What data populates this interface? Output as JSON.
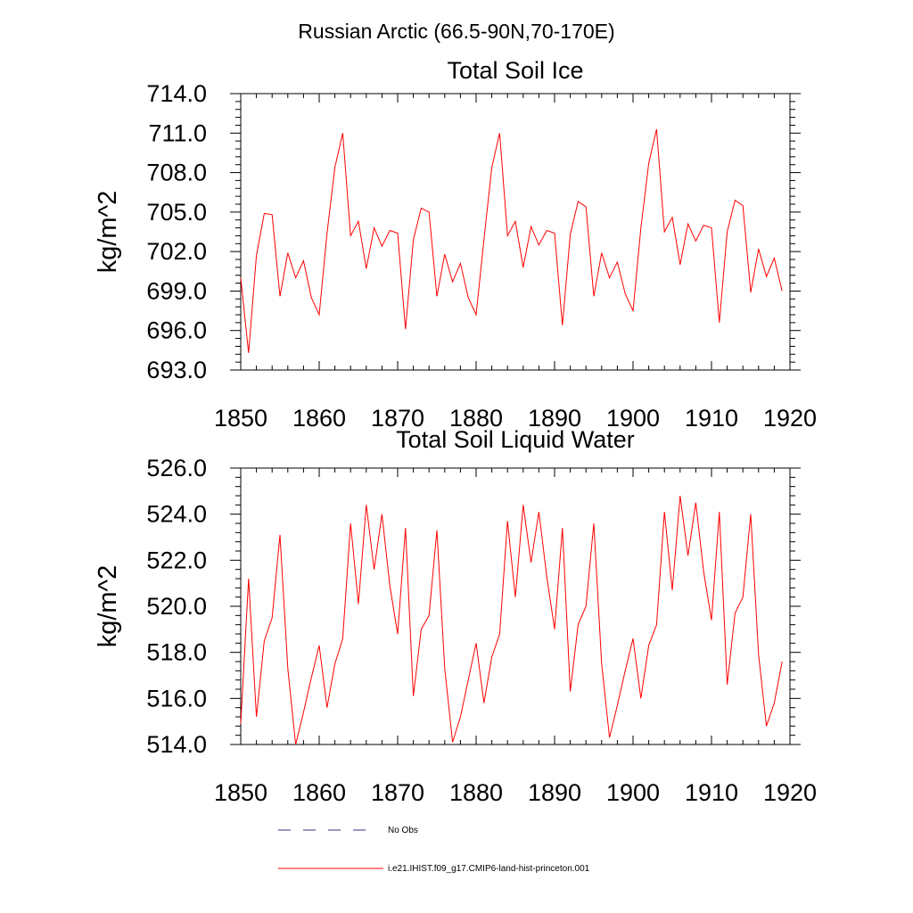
{
  "figure": {
    "title": "Russian Arctic (66.5-90N,70-170E)"
  },
  "chart_data": [
    {
      "type": "line",
      "title": "Total Soil Ice",
      "xlabel": "",
      "ylabel": "kg/m^2",
      "xlim": [
        1850,
        1920
      ],
      "ylim": [
        693,
        714
      ],
      "xticks": [
        "1850",
        "1860",
        "1870",
        "1880",
        "1890",
        "1900",
        "1910",
        "1920"
      ],
      "yticks": [
        "714.0",
        "711.0",
        "708.0",
        "705.0",
        "702.0",
        "699.0",
        "696.0",
        "693.0"
      ],
      "grid": false,
      "series": [
        {
          "name": "i.e21.IHIST.f09_g17.CMIP6-land-hist-princeton.001",
          "color": "#ff0000",
          "x": [
            1850,
            1851,
            1852,
            1853,
            1854,
            1855,
            1856,
            1857,
            1858,
            1859,
            1860,
            1861,
            1862,
            1863,
            1864,
            1865,
            1866,
            1867,
            1868,
            1869,
            1870,
            1871,
            1872,
            1873,
            1874,
            1875,
            1876,
            1877,
            1878,
            1879,
            1880,
            1881,
            1882,
            1883,
            1884,
            1885,
            1886,
            1887,
            1888,
            1889,
            1890,
            1891,
            1892,
            1893,
            1894,
            1895,
            1896,
            1897,
            1898,
            1899,
            1900,
            1901,
            1902,
            1903,
            1904,
            1905,
            1906,
            1907,
            1908,
            1909,
            1910,
            1911,
            1912,
            1913,
            1914,
            1915,
            1916,
            1917,
            1918,
            1919
          ],
          "y": [
            700.0,
            694.3,
            701.7,
            704.9,
            704.8,
            698.6,
            701.9,
            700.0,
            701.3,
            698.5,
            697.2,
            703.4,
            708.4,
            711.0,
            703.2,
            704.3,
            700.7,
            703.8,
            702.4,
            703.6,
            703.4,
            696.1,
            702.9,
            705.3,
            705.0,
            698.6,
            701.8,
            699.7,
            701.1,
            698.5,
            697.2,
            702.9,
            708.4,
            711.0,
            703.2,
            704.3,
            700.8,
            703.9,
            702.5,
            703.6,
            703.4,
            696.4,
            703.3,
            705.8,
            705.4,
            698.6,
            701.9,
            700.0,
            701.2,
            698.8,
            697.5,
            703.8,
            708.7,
            711.3,
            703.5,
            704.6,
            701.0,
            704.1,
            702.8,
            704.0,
            703.8,
            696.6,
            703.5,
            705.9,
            705.5,
            698.9,
            702.2,
            700.1,
            701.5,
            699.0
          ]
        }
      ]
    },
    {
      "type": "line",
      "title": "Total Soil Liquid Water",
      "xlabel": "",
      "ylabel": "kg/m^2",
      "xlim": [
        1850,
        1920
      ],
      "ylim": [
        514,
        526
      ],
      "xticks": [
        "1850",
        "1860",
        "1870",
        "1880",
        "1890",
        "1900",
        "1910",
        "1920"
      ],
      "yticks": [
        "526.0",
        "524.0",
        "522.0",
        "520.0",
        "518.0",
        "516.0",
        "514.0"
      ],
      "grid": false,
      "series": [
        {
          "name": "i.e21.IHIST.f09_g17.CMIP6-land-hist-princeton.001",
          "color": "#ff0000",
          "x": [
            1850,
            1851,
            1852,
            1853,
            1854,
            1855,
            1856,
            1857,
            1858,
            1859,
            1860,
            1861,
            1862,
            1863,
            1864,
            1865,
            1866,
            1867,
            1868,
            1869,
            1870,
            1871,
            1872,
            1873,
            1874,
            1875,
            1876,
            1877,
            1878,
            1879,
            1880,
            1881,
            1882,
            1883,
            1884,
            1885,
            1886,
            1887,
            1888,
            1889,
            1890,
            1891,
            1892,
            1893,
            1894,
            1895,
            1896,
            1897,
            1898,
            1899,
            1900,
            1901,
            1902,
            1903,
            1904,
            1905,
            1906,
            1907,
            1908,
            1909,
            1910,
            1911,
            1912,
            1913,
            1914,
            1915,
            1916,
            1917,
            1918,
            1919
          ],
          "y": [
            514.9,
            521.2,
            515.2,
            518.5,
            519.5,
            523.1,
            517.3,
            514.0,
            515.4,
            516.9,
            518.3,
            515.6,
            517.5,
            518.6,
            523.6,
            520.1,
            524.4,
            521.6,
            524.0,
            520.9,
            518.8,
            523.4,
            516.1,
            519.0,
            519.6,
            523.3,
            517.3,
            514.1,
            515.2,
            516.8,
            518.4,
            515.8,
            517.8,
            518.8,
            523.7,
            520.4,
            524.4,
            521.9,
            524.1,
            521.3,
            519.0,
            523.4,
            516.3,
            519.2,
            520.0,
            523.6,
            517.5,
            514.3,
            515.7,
            517.2,
            518.6,
            516.0,
            518.3,
            519.2,
            524.1,
            520.7,
            524.8,
            522.2,
            524.5,
            521.5,
            519.4,
            524.1,
            516.6,
            519.7,
            520.4,
            524.0,
            517.9,
            514.8,
            515.8,
            517.6
          ]
        }
      ]
    }
  ],
  "legend": {
    "placement": "bottom",
    "entries": [
      {
        "label": "No Obs",
        "color": "#303080",
        "style": "dashed"
      },
      {
        "label": "i.e21.IHIST.f09_g17.CMIP6-land-hist-princeton.001",
        "color": "#ff0000",
        "style": "solid"
      }
    ]
  }
}
